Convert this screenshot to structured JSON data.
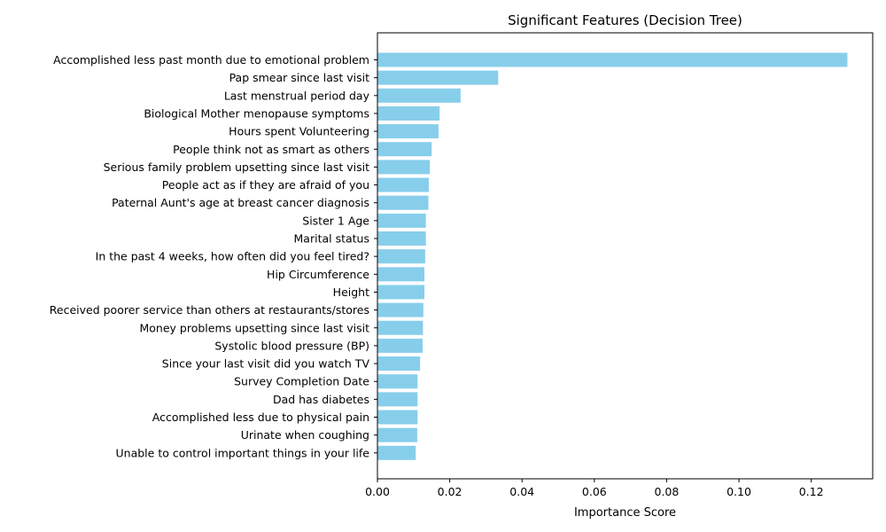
{
  "chart_data": {
    "type": "bar",
    "orientation": "horizontal",
    "title": "Significant Features (Decision Tree)",
    "xlabel": "Importance Score",
    "ylabel": "",
    "xlim": [
      0.0,
      0.137
    ],
    "xticks": [
      "0.00",
      "0.02",
      "0.04",
      "0.06",
      "0.08",
      "0.10",
      "0.12"
    ],
    "grid": false,
    "bar_color": "#87CEEB",
    "categories": [
      "Accomplished less past month due to emotional problem",
      "Pap smear since last visit",
      "Last menstrual period day",
      "Biological Mother menopause symptoms",
      "Hours spent Volunteering",
      "People think not as smart as others",
      "Serious family problem upsetting since last visit",
      "People act as if they are afraid of you",
      "Paternal Aunt's age at breast cancer diagnosis",
      "Sister 1 Age",
      "Marital status",
      "In the past 4 weeks, how often did you feel tired?",
      "Hip Circumference",
      "Height",
      "Received poorer service than others at restaurants/stores",
      "Money problems upsetting since last visit",
      "Systolic blood pressure (BP)",
      "Since your last visit did you watch TV",
      "Survey Completion Date",
      "Dad has diabetes",
      "Accomplished less due to physical pain",
      "Urinate when coughing",
      "Unable to control important things in your life"
    ],
    "values": [
      0.13,
      0.0334,
      0.023,
      0.0172,
      0.0169,
      0.015,
      0.0145,
      0.0142,
      0.0141,
      0.0134,
      0.0134,
      0.0132,
      0.013,
      0.013,
      0.0127,
      0.0126,
      0.0125,
      0.0118,
      0.0111,
      0.0111,
      0.0111,
      0.011,
      0.0106
    ]
  }
}
